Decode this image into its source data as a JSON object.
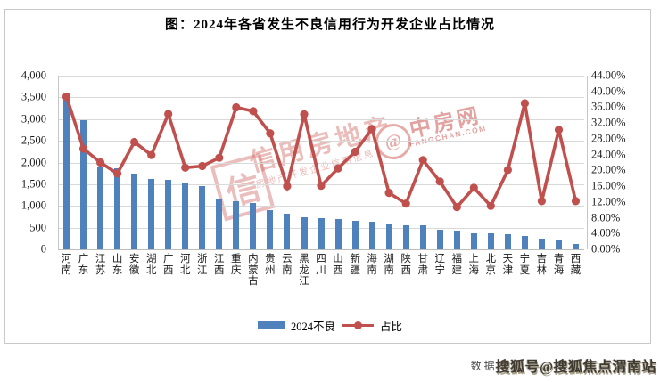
{
  "title": "图：2024年各省发生不良信用行为开发企业占比情况",
  "chart_data": {
    "type": "bar",
    "subtype": "bar+line dual axis",
    "categories": [
      "河南",
      "广东",
      "江苏",
      "山东",
      "安徽",
      "湖北",
      "广西",
      "河北",
      "浙江",
      "江西",
      "重庆",
      "内蒙古",
      "贵州",
      "云南",
      "黑龙江",
      "四川",
      "山西",
      "新疆",
      "海南",
      "湖南",
      "陕西",
      "甘肃",
      "辽宁",
      "福建",
      "上海",
      "北京",
      "天津",
      "宁夏",
      "吉林",
      "青海",
      "西藏"
    ],
    "series": [
      {
        "name": "2024不良",
        "type": "bar",
        "axis": "left",
        "values": [
          3500,
          2970,
          1900,
          1870,
          1750,
          1630,
          1600,
          1510,
          1460,
          1180,
          1100,
          1060,
          910,
          820,
          730,
          720,
          690,
          650,
          640,
          590,
          550,
          550,
          460,
          425,
          380,
          380,
          355,
          310,
          240,
          205,
          120
        ]
      },
      {
        "name": "占比",
        "type": "line",
        "axis": "right",
        "values": [
          38.7,
          25.5,
          22.0,
          19.2,
          27.2,
          23.9,
          34.3,
          20.7,
          21.1,
          23.2,
          36.0,
          35.0,
          29.4,
          16.0,
          34.2,
          16.1,
          20.5,
          24.7,
          30.5,
          14.3,
          11.6,
          22.6,
          17.2,
          10.7,
          15.6,
          11.0,
          20.1,
          37.0,
          12.2,
          30.3,
          12.2
        ]
      }
    ],
    "title": "图：2024年各省发生不良信用行为开发企业占比情况",
    "xlabel": "",
    "ylabel_left": "",
    "ylabel_right": "",
    "y_axis_left": {
      "min": 0,
      "max": 4000,
      "step": 500,
      "ticks": [
        "0",
        "500",
        "1,000",
        "1,500",
        "2,000",
        "2,500",
        "3,000",
        "3,500",
        "4,000"
      ]
    },
    "y_axis_right": {
      "min": 0,
      "max": 44,
      "step": 4,
      "ticks": [
        "0.00%",
        "4.00%",
        "8.00%",
        "12.00%",
        "16.00%",
        "20.00%",
        "24.00%",
        "28.00%",
        "32.00%",
        "36.00%",
        "40.00%",
        "44.00%"
      ]
    },
    "grid": true,
    "legend_position": "bottom"
  },
  "legend": {
    "bar_label": "2024不良",
    "line_label": "占比"
  },
  "watermarks": {
    "seal_char": "信",
    "brand_text": "信用房地产",
    "brand_subtext": "房地产开发企业信用信息",
    "stamp_symbol": "@",
    "stamp_text": "中房网",
    "stamp_subtext": "FANGCHAN.COM"
  },
  "footer": {
    "prefix": "数据",
    "watermark": "搜狐号@搜狐焦点渭南站"
  },
  "colors": {
    "bar": "#4f81bd",
    "line": "#c0504d",
    "grid": "#d9d9d9",
    "axis": "#c6c6c6"
  }
}
